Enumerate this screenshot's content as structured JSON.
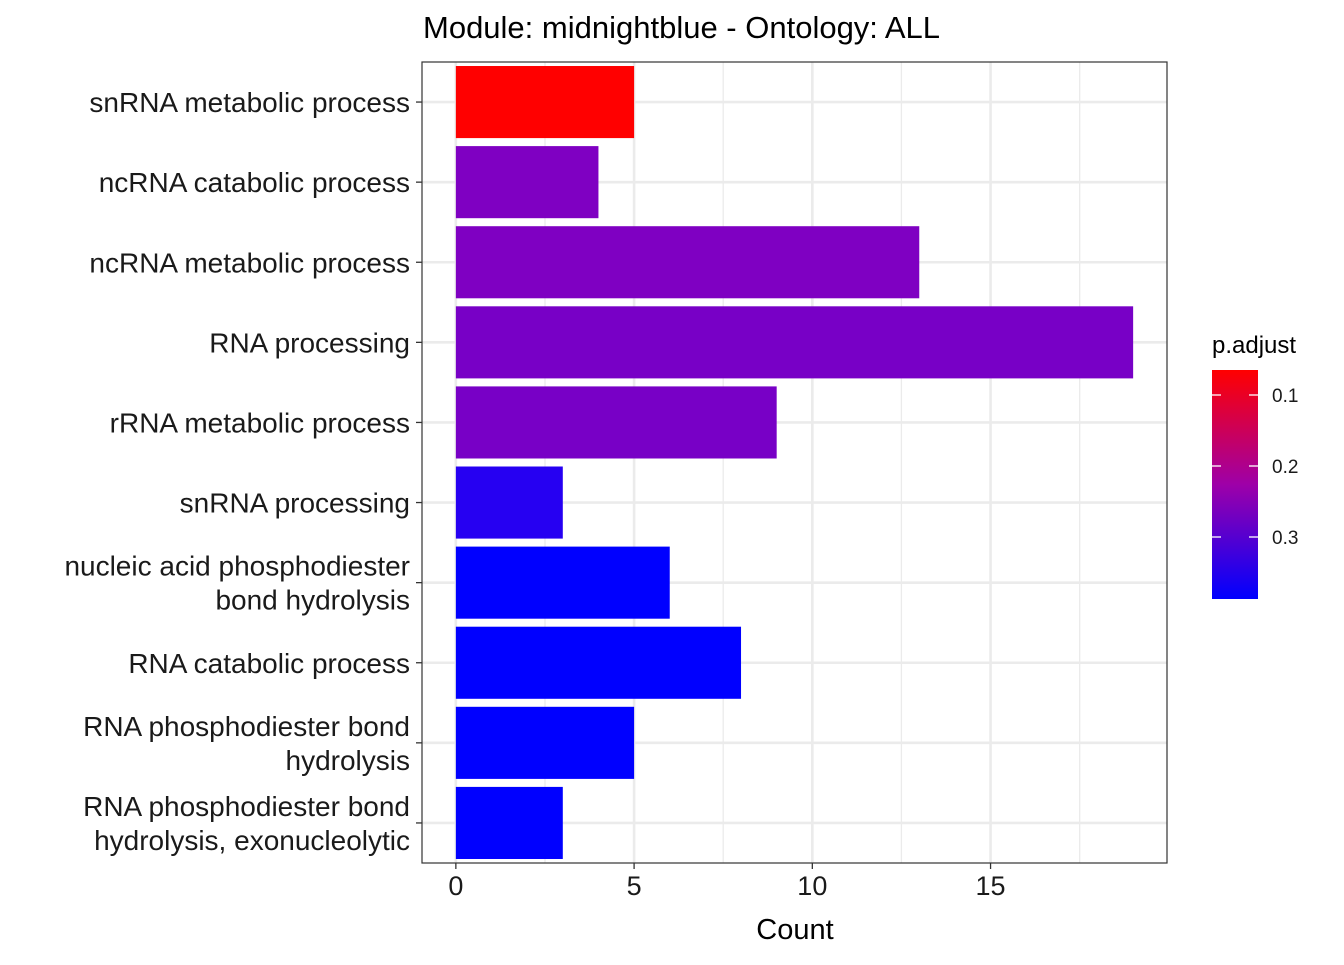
{
  "chart_data": {
    "type": "bar",
    "orientation": "horizontal",
    "title": "Module: midnightblue - Ontology: ALL",
    "xlabel": "Count",
    "ylabel": "",
    "xlim": [
      -0.95,
      19.95
    ],
    "xticks": [
      0,
      5,
      10,
      15
    ],
    "grid": true,
    "categories": [
      "snRNA metabolic process",
      "ncRNA catabolic process",
      "ncRNA metabolic process",
      "RNA processing",
      "rRNA metabolic process",
      "snRNA processing",
      "nucleic acid phosphodiester bond hydrolysis",
      "RNA catabolic process",
      "RNA phosphodiester bond hydrolysis",
      "RNA phosphodiester bond hydrolysis, exonucleolytic"
    ],
    "category_label_lines": [
      [
        "snRNA metabolic process"
      ],
      [
        "ncRNA catabolic process"
      ],
      [
        "ncRNA metabolic process"
      ],
      [
        "RNA processing"
      ],
      [
        "rRNA metabolic process"
      ],
      [
        "snRNA processing"
      ],
      [
        "nucleic acid phosphodiester",
        "bond hydrolysis"
      ],
      [
        "RNA catabolic process"
      ],
      [
        "RNA phosphodiester bond",
        "hydrolysis"
      ],
      [
        "RNA phosphodiester bond",
        "hydrolysis, exonucleolytic"
      ]
    ],
    "values": [
      5,
      4,
      13,
      19,
      9,
      3,
      6,
      8,
      5,
      3
    ],
    "bar_colors": [
      "#ff0000",
      "#7f00c2",
      "#7f00c2",
      "#7800c6",
      "#7800c6",
      "#2600f2",
      "#0000ff",
      "#0000ff",
      "#0000ff",
      "#0000ff"
    ],
    "legend": {
      "title": "p.adjust",
      "position": "right",
      "gradient_colors": [
        "#ff0000",
        "#0000ff"
      ],
      "ticks": [
        "0.1",
        "0.2",
        "0.3"
      ]
    }
  }
}
